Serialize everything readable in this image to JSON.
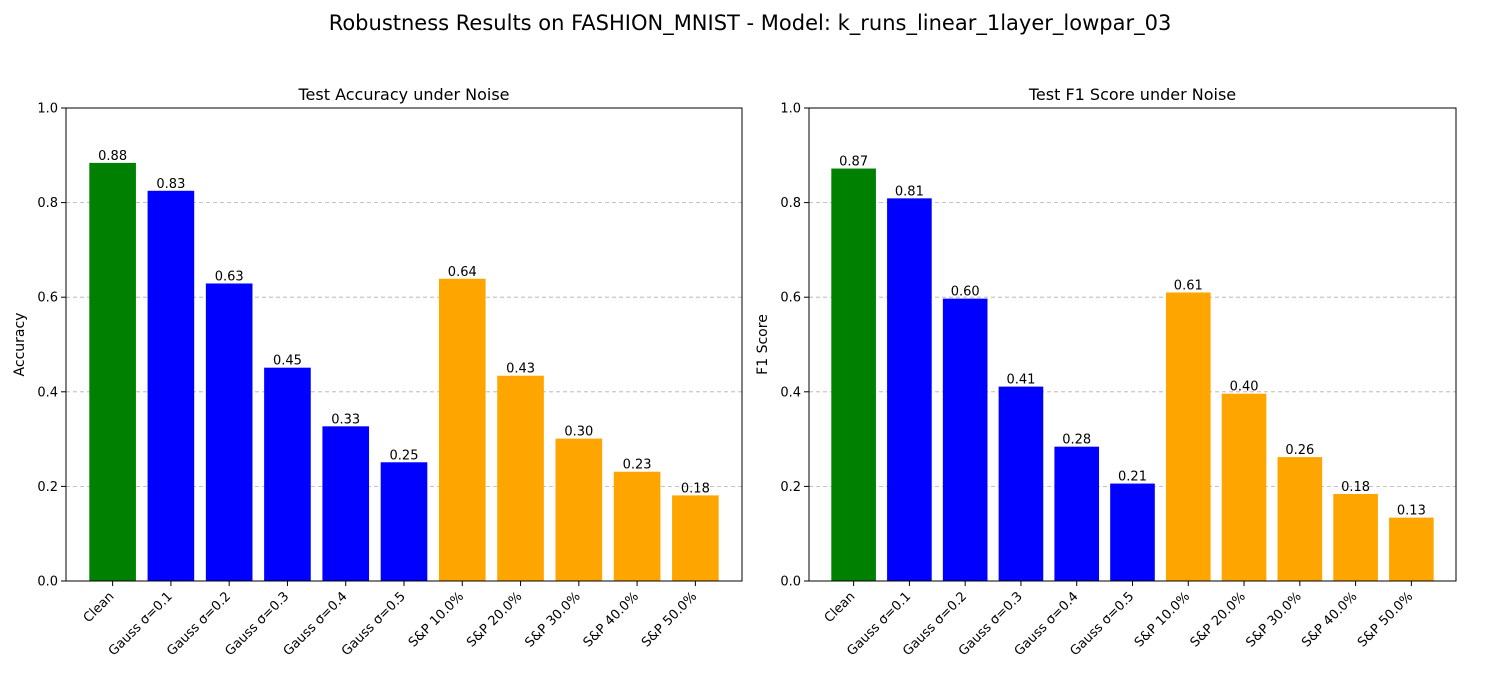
{
  "suptitle": "Robustness Results on FASHION_MNIST - Model: k_runs_linear_1layer_lowpar_03",
  "colors": {
    "clean": "#008000",
    "gauss": "#0000ff",
    "sp": "#ffa500"
  },
  "chart_data": [
    {
      "type": "bar",
      "title": "Test Accuracy under Noise",
      "xlabel": "",
      "ylabel": "Accuracy",
      "ylim": [
        0,
        1.0
      ],
      "yticks": [
        "0.0",
        "0.2",
        "0.4",
        "0.6",
        "0.8",
        "1.0"
      ],
      "grid": "y",
      "categories": [
        "Clean",
        "Gauss σ=0.1",
        "Gauss σ=0.2",
        "Gauss σ=0.3",
        "Gauss σ=0.4",
        "Gauss σ=0.5",
        "S&P 10.0%",
        "S&P 20.0%",
        "S&P 30.0%",
        "S&P 40.0%",
        "S&P 50.0%"
      ],
      "values": [
        0.884,
        0.825,
        0.629,
        0.451,
        0.327,
        0.251,
        0.639,
        0.434,
        0.301,
        0.231,
        0.181
      ],
      "labels": [
        "0.88",
        "0.83",
        "0.63",
        "0.45",
        "0.33",
        "0.25",
        "0.64",
        "0.43",
        "0.30",
        "0.23",
        "0.18"
      ],
      "groups": [
        "clean",
        "gauss",
        "gauss",
        "gauss",
        "gauss",
        "gauss",
        "sp",
        "sp",
        "sp",
        "sp",
        "sp"
      ]
    },
    {
      "type": "bar",
      "title": "Test F1 Score under Noise",
      "xlabel": "",
      "ylabel": "F1 Score",
      "ylim": [
        0,
        1.0
      ],
      "yticks": [
        "0.0",
        "0.2",
        "0.4",
        "0.6",
        "0.8",
        "1.0"
      ],
      "grid": "y",
      "categories": [
        "Clean",
        "Gauss σ=0.1",
        "Gauss σ=0.2",
        "Gauss σ=0.3",
        "Gauss σ=0.4",
        "Gauss σ=0.5",
        "S&P 10.0%",
        "S&P 20.0%",
        "S&P 30.0%",
        "S&P 40.0%",
        "S&P 50.0%"
      ],
      "values": [
        0.872,
        0.809,
        0.597,
        0.411,
        0.284,
        0.206,
        0.61,
        0.396,
        0.262,
        0.184,
        0.134
      ],
      "labels": [
        "0.87",
        "0.81",
        "0.60",
        "0.41",
        "0.28",
        "0.21",
        "0.61",
        "0.40",
        "0.26",
        "0.18",
        "0.13"
      ],
      "groups": [
        "clean",
        "gauss",
        "gauss",
        "gauss",
        "gauss",
        "gauss",
        "sp",
        "sp",
        "sp",
        "sp",
        "sp"
      ]
    }
  ]
}
